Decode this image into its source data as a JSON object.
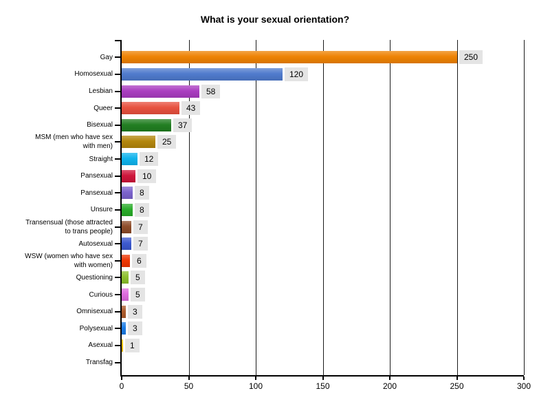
{
  "title": "What is your sexual orientation?",
  "chart_data": {
    "type": "bar",
    "orientation": "horizontal",
    "title": "What is your sexual orientation?",
    "xlabel": "",
    "ylabel": "",
    "xlim": [
      0,
      300
    ],
    "x_ticks": [
      0,
      50,
      100,
      150,
      200,
      250,
      300
    ],
    "grid": "vertical black gridlines at each x tick, drawn behind bars",
    "legend": "none",
    "value_labels": "shown in light gray chips at bar ends (hidden for zero values)",
    "value_chip_bg": "#e4e4e4",
    "axis_color": "#000000",
    "categories": [
      "Gay",
      "Homosexual",
      "Lesbian",
      "Queer",
      "Bisexual",
      "MSM (men who have sex with men)",
      "Straight",
      "Pansexual",
      "Pansexual",
      "Unsure",
      "Transensual (those attracted to trans people)",
      "Autosexual",
      "WSW (women who have sex with women)",
      "Questioning",
      "Curious",
      "Omnisexual",
      "Polysexual",
      "Asexual",
      "Transfag"
    ],
    "values": [
      250,
      120,
      58,
      43,
      37,
      25,
      12,
      10,
      8,
      8,
      7,
      7,
      6,
      5,
      5,
      3,
      3,
      1,
      0
    ],
    "colors": [
      "#ee8100",
      "#4d79cc",
      "#a93bc0",
      "#e74f3d",
      "#1f7d1f",
      "#b2850a",
      "#0cb2ec",
      "#ce1238",
      "#7a62cc",
      "#27ab27",
      "#8c4a26",
      "#3a57ce",
      "#ef3400",
      "#8cc02c",
      "#de6ade",
      "#ac5a2a",
      "#187ae4",
      "#f0c000",
      "#888888"
    ]
  }
}
